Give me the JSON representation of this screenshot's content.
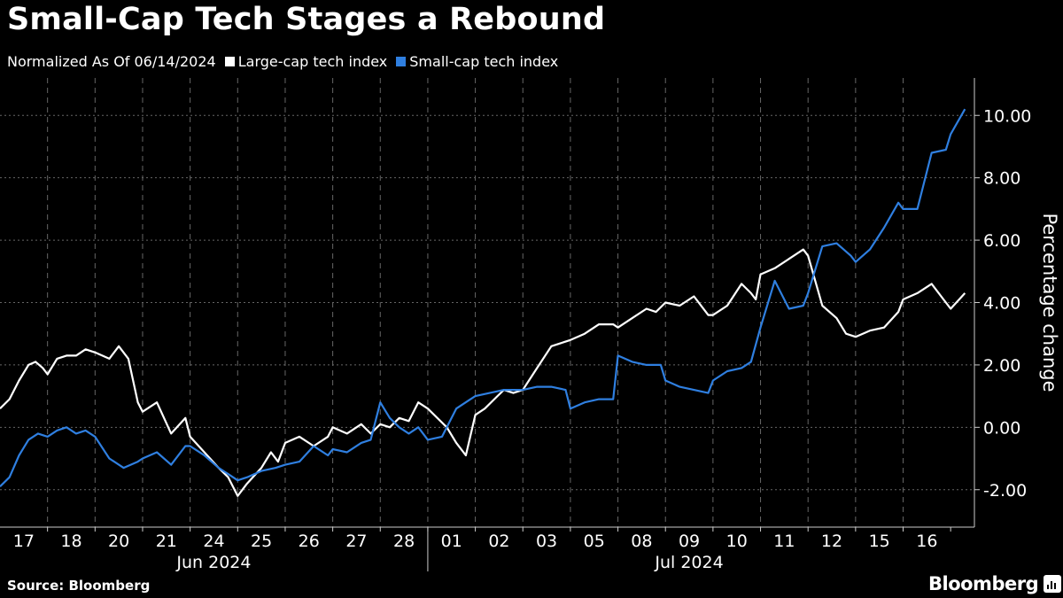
{
  "header": {
    "title": "Small-Cap Tech Stages a Rebound"
  },
  "legend": {
    "note": "Normalized As Of 06/14/2024",
    "items": [
      {
        "label": "Large-cap tech index",
        "color": "#ffffff"
      },
      {
        "label": "Small-cap tech index",
        "color": "#2f7fe0"
      }
    ]
  },
  "footer": {
    "source": "Source: Bloomberg",
    "brand": "Bloomberg",
    "brand_icon": "bloomberg-terminal-icon"
  },
  "chart_data": {
    "type": "line",
    "ylabel": "Percentage change",
    "ylim": [
      -3.2,
      11.2
    ],
    "y_ticks": [
      -2,
      0,
      2,
      4,
      6,
      8,
      10
    ],
    "y_tick_labels": [
      "-2.00",
      "0.00",
      "2.00",
      "4.00",
      "6.00",
      "8.00",
      "10.00"
    ],
    "grid": true,
    "x_day_labels": [
      "17",
      "18",
      "20",
      "21",
      "24",
      "25",
      "26",
      "27",
      "28",
      "01",
      "02",
      "03",
      "05",
      "08",
      "09",
      "10",
      "11",
      "12",
      "15",
      "16"
    ],
    "x_month_labels": [
      "Jun 2024",
      "Jul 2024"
    ],
    "x_range": [
      0,
      20.5
    ],
    "series": [
      {
        "name": "Large-cap tech index",
        "color": "#ffffff",
        "x": [
          0,
          0.2,
          0.4,
          0.6,
          0.75,
          0.9,
          1,
          1.2,
          1.4,
          1.6,
          1.8,
          2,
          2.3,
          2.5,
          2.7,
          2.9,
          3,
          3.3,
          3.6,
          3.9,
          4,
          4.3,
          4.6,
          4.8,
          5,
          5.2,
          5.5,
          5.7,
          5.85,
          6,
          6.3,
          6.6,
          6.9,
          7,
          7.3,
          7.6,
          7.8,
          8,
          8.2,
          8.4,
          8.6,
          8.8,
          9,
          9.2,
          9.4,
          9.6,
          9.8,
          10,
          10.2,
          10.4,
          10.6,
          10.8,
          11,
          11.3,
          11.6,
          11.8,
          12,
          12.3,
          12.6,
          12.9,
          13,
          13.3,
          13.6,
          13.8,
          14,
          14.3,
          14.6,
          14.9,
          15,
          15.3,
          15.6,
          15.8,
          15.9,
          16,
          16.3,
          16.6,
          16.9,
          17,
          17.3,
          17.6,
          17.8,
          18,
          18.3,
          18.6,
          18.9,
          19,
          19.3,
          19.6,
          19.9,
          20,
          20.3
        ],
        "y": [
          0.6,
          0.9,
          1.5,
          2.0,
          2.1,
          1.9,
          1.7,
          2.2,
          2.3,
          2.3,
          2.5,
          2.4,
          2.2,
          2.6,
          2.2,
          0.8,
          0.5,
          0.8,
          -0.2,
          0.3,
          -0.3,
          -0.8,
          -1.3,
          -1.6,
          -2.2,
          -1.8,
          -1.3,
          -0.8,
          -1.1,
          -0.5,
          -0.3,
          -0.6,
          -0.3,
          0.0,
          -0.2,
          0.1,
          -0.2,
          0.1,
          0.0,
          0.3,
          0.2,
          0.8,
          0.6,
          0.3,
          0.0,
          -0.5,
          -0.9,
          0.4,
          0.6,
          0.9,
          1.2,
          1.1,
          1.2,
          1.9,
          2.6,
          2.7,
          2.8,
          3.0,
          3.3,
          3.3,
          3.2,
          3.5,
          3.8,
          3.7,
          4.0,
          3.9,
          4.2,
          3.6,
          3.6,
          3.9,
          4.6,
          4.3,
          4.1,
          4.9,
          5.1,
          5.4,
          5.7,
          5.5,
          3.9,
          3.5,
          3.0,
          2.9,
          3.1,
          3.2,
          3.7,
          4.1,
          4.3,
          4.6,
          4.0,
          3.8,
          4.3
        ]
      },
      {
        "name": "Small-cap tech index",
        "color": "#2f7fe0",
        "x": [
          0,
          0.2,
          0.4,
          0.6,
          0.8,
          1,
          1.2,
          1.4,
          1.6,
          1.8,
          2,
          2.3,
          2.6,
          2.9,
          3,
          3.3,
          3.6,
          3.9,
          4,
          4.3,
          4.6,
          4.8,
          5,
          5.2,
          5.5,
          5.8,
          6,
          6.3,
          6.6,
          6.9,
          7,
          7.3,
          7.6,
          7.8,
          8,
          8.2,
          8.4,
          8.6,
          8.8,
          9,
          9.3,
          9.6,
          9.9,
          10,
          10.3,
          10.6,
          10.8,
          11,
          11.3,
          11.6,
          11.9,
          12,
          12.3,
          12.6,
          12.9,
          13,
          13.3,
          13.6,
          13.9,
          14,
          14.3,
          14.6,
          14.9,
          15,
          15.3,
          15.6,
          15.8,
          16,
          16.3,
          16.6,
          16.9,
          17,
          17.3,
          17.6,
          17.9,
          18,
          18.3,
          18.6,
          18.9,
          19,
          19.3,
          19.6,
          19.9,
          20,
          20.3
        ],
        "y": [
          -1.9,
          -1.6,
          -0.9,
          -0.4,
          -0.2,
          -0.3,
          -0.1,
          0.0,
          -0.2,
          -0.1,
          -0.3,
          -1.0,
          -1.3,
          -1.1,
          -1.0,
          -0.8,
          -1.2,
          -0.6,
          -0.6,
          -0.9,
          -1.3,
          -1.5,
          -1.7,
          -1.6,
          -1.4,
          -1.3,
          -1.2,
          -1.1,
          -0.6,
          -0.9,
          -0.7,
          -0.8,
          -0.5,
          -0.4,
          0.8,
          0.3,
          0.0,
          -0.2,
          0.0,
          -0.4,
          -0.3,
          0.6,
          0.9,
          1.0,
          1.1,
          1.2,
          1.2,
          1.2,
          1.3,
          1.3,
          1.2,
          0.6,
          0.8,
          0.9,
          0.9,
          2.3,
          2.1,
          2.0,
          2.0,
          1.5,
          1.3,
          1.2,
          1.1,
          1.5,
          1.8,
          1.9,
          2.1,
          3.2,
          4.7,
          3.8,
          3.9,
          4.3,
          5.8,
          5.9,
          5.5,
          5.3,
          5.7,
          6.4,
          7.2,
          7.0,
          7.0,
          8.8,
          8.9,
          9.4,
          10.2
        ]
      }
    ]
  }
}
